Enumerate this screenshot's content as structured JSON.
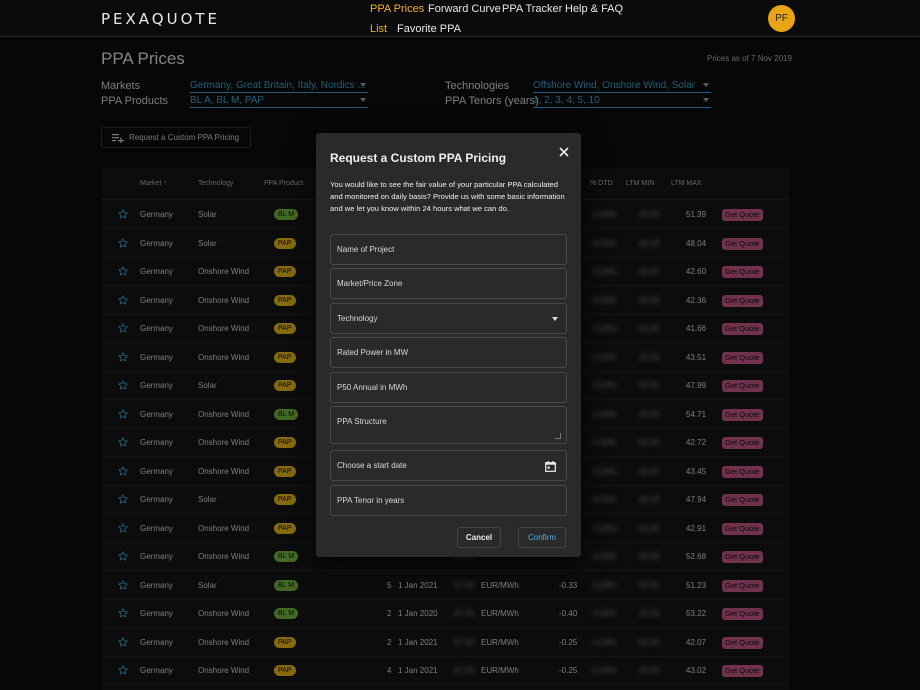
{
  "header": {
    "logo": "PEXAQUOTE",
    "nav": [
      {
        "label": "PPA Prices",
        "active": true
      },
      {
        "label": "Forward Curve",
        "active": false
      },
      {
        "label": "PPA Tracker",
        "active": false
      },
      {
        "label": "Help & FAQ",
        "active": false
      }
    ],
    "subnav": [
      {
        "label": "List",
        "active": true
      },
      {
        "label": "Favorite PPA",
        "active": false
      }
    ],
    "avatar_initials": "PF"
  },
  "page": {
    "title": "PPA Prices",
    "as_of": "Prices as of 7 Nov 2019"
  },
  "filters": {
    "markets_label": "Markets",
    "markets_value": "Germany, Great Britain, Italy, Nordics ...",
    "products_label": "PPA Products",
    "products_value": "BL A, BL M, PAP",
    "technologies_label": "Technologies",
    "technologies_value": "Offshore Wind, Onshore Wind, Solar",
    "tenors_label": "PPA Tenors (years)",
    "tenors_value": "1, 2, 3, 4, 5, 10"
  },
  "custom_pricing_button": "Request a Custom PPA Pricing",
  "table": {
    "headers": {
      "market": "Market",
      "technology": "Technology",
      "product": "PPA Product",
      "dtd": "% DTD",
      "ltm_min": "LTM MIN",
      "ltm_max": "LTM MAX"
    },
    "quote_label": "Get Quote",
    "rows": [
      {
        "market": "Germany",
        "technology": "Solar",
        "product": "BL M",
        "tenor": "",
        "start": "",
        "unit": "",
        "change": "",
        "ltm_max": "51.39"
      },
      {
        "market": "Germany",
        "technology": "Solar",
        "product": "PAP",
        "tenor": "",
        "start": "",
        "unit": "",
        "change": "",
        "ltm_max": "48.04"
      },
      {
        "market": "Germany",
        "technology": "Onshore Wind",
        "product": "PAP",
        "tenor": "",
        "start": "",
        "unit": "",
        "change": "",
        "ltm_max": "42.60"
      },
      {
        "market": "Germany",
        "technology": "Onshore Wind",
        "product": "PAP",
        "tenor": "",
        "start": "",
        "unit": "",
        "change": "",
        "ltm_max": "42.36"
      },
      {
        "market": "Germany",
        "technology": "Onshore Wind",
        "product": "PAP",
        "tenor": "",
        "start": "",
        "unit": "",
        "change": "",
        "ltm_max": "41.66"
      },
      {
        "market": "Germany",
        "technology": "Onshore Wind",
        "product": "PAP",
        "tenor": "",
        "start": "",
        "unit": "",
        "change": "",
        "ltm_max": "43.51"
      },
      {
        "market": "Germany",
        "technology": "Solar",
        "product": "PAP",
        "tenor": "",
        "start": "",
        "unit": "",
        "change": "",
        "ltm_max": "47.99"
      },
      {
        "market": "Germany",
        "technology": "Onshore Wind",
        "product": "BL M",
        "tenor": "",
        "start": "",
        "unit": "",
        "change": "",
        "ltm_max": "54.71"
      },
      {
        "market": "Germany",
        "technology": "Onshore Wind",
        "product": "PAP",
        "tenor": "",
        "start": "",
        "unit": "",
        "change": "",
        "ltm_max": "42.72"
      },
      {
        "market": "Germany",
        "technology": "Onshore Wind",
        "product": "PAP",
        "tenor": "",
        "start": "",
        "unit": "",
        "change": "",
        "ltm_max": "43.45"
      },
      {
        "market": "Germany",
        "technology": "Solar",
        "product": "PAP",
        "tenor": "",
        "start": "",
        "unit": "",
        "change": "",
        "ltm_max": "47.94"
      },
      {
        "market": "Germany",
        "technology": "Onshore Wind",
        "product": "PAP",
        "tenor": "",
        "start": "",
        "unit": "",
        "change": "",
        "ltm_max": "42.91"
      },
      {
        "market": "Germany",
        "technology": "Onshore Wind",
        "product": "BL M",
        "tenor": "",
        "start": "",
        "unit": "",
        "change": "",
        "ltm_max": "52.68"
      },
      {
        "market": "Germany",
        "technology": "Solar",
        "product": "BL M",
        "tenor": "5",
        "start": "1 Jan 2021",
        "unit": "EUR/MWh",
        "change": "-0.33",
        "ltm_max": "51.23"
      },
      {
        "market": "Germany",
        "technology": "Onshore Wind",
        "product": "BL M",
        "tenor": "2",
        "start": "1 Jan 2020",
        "unit": "EUR/MWh",
        "change": "-0.40",
        "ltm_max": "53.22"
      },
      {
        "market": "Germany",
        "technology": "Onshore Wind",
        "product": "PAP",
        "tenor": "2",
        "start": "1 Jan 2021",
        "unit": "EUR/MWh",
        "change": "-0.25",
        "ltm_max": "42.07"
      },
      {
        "market": "Germany",
        "technology": "Onshore Wind",
        "product": "PAP",
        "tenor": "4",
        "start": "1 Jan 2021",
        "unit": "EUR/MWh",
        "change": "-0.25",
        "ltm_max": "43.02"
      }
    ]
  },
  "modal": {
    "title": "Request a Custom PPA Pricing",
    "description": "You would like to see the fair value of your particular PPA calculated and monitored on daily basis? Provide us with some basic information and we let you know within 24 hours what we can do.",
    "fields": {
      "project_name": "Name of Project",
      "market_zone": "Market/Price Zone",
      "technology": "Technology",
      "rated_power": "Rated Power in MW",
      "p50": "P50 Annual in MWh",
      "structure": "PPA Structure",
      "start_date": "Choose a start date",
      "tenor": "PPA Tenor in years"
    },
    "cancel": "Cancel",
    "confirm": "Confirm"
  }
}
